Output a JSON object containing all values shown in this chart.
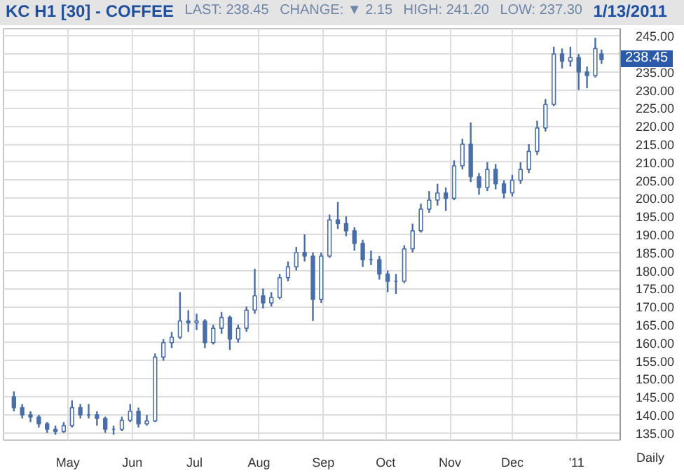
{
  "chart_data": {
    "type": "candlestick",
    "title": "KC H1 [30] - COFFEE",
    "annotations": [
      "LAST: 238.45",
      "CHANGE: ▼ 2.15",
      "HIGH: 241.20",
      "LOW: 237.30",
      "1/13/2011",
      "Daily",
      {
        "text": "238.45",
        "y": 238.45
      }
    ],
    "x": [
      "2010-04-05",
      "2010-04-09",
      "2010-04-13",
      "2010-04-17",
      "2010-04-21",
      "2010-04-25",
      "2010-04-29",
      "2010-05-03",
      "2010-05-07",
      "2010-05-11",
      "2010-05-15",
      "2010-05-19",
      "2010-05-23",
      "2010-05-27",
      "2010-05-31",
      "2010-06-04",
      "2010-06-08",
      "2010-06-12",
      "2010-06-16",
      "2010-06-20",
      "2010-06-24",
      "2010-06-28",
      "2010-07-02",
      "2010-07-06",
      "2010-07-10",
      "2010-07-14",
      "2010-07-18",
      "2010-07-22",
      "2010-07-26",
      "2010-07-30",
      "2010-08-03",
      "2010-08-07",
      "2010-08-11",
      "2010-08-15",
      "2010-08-19",
      "2010-08-23",
      "2010-08-27",
      "2010-08-31",
      "2010-09-04",
      "2010-09-08",
      "2010-09-12",
      "2010-09-16",
      "2010-09-20",
      "2010-09-24",
      "2010-09-28",
      "2010-10-02",
      "2010-10-06",
      "2010-10-10",
      "2010-10-14",
      "2010-10-18",
      "2010-10-22",
      "2010-10-26",
      "2010-10-30",
      "2010-11-03",
      "2010-11-07",
      "2010-11-11",
      "2010-11-15",
      "2010-11-19",
      "2010-11-23",
      "2010-11-27",
      "2010-12-01",
      "2010-12-05",
      "2010-12-09",
      "2010-12-13",
      "2010-12-17",
      "2010-12-21",
      "2010-12-25",
      "2010-12-29",
      "2011-01-02",
      "2011-01-06",
      "2011-01-10",
      "2011-01-13"
    ],
    "ohlc": [
      [
        145,
        146.5,
        141,
        142
      ],
      [
        142,
        143,
        139,
        140
      ],
      [
        140,
        141,
        138,
        139.4
      ],
      [
        139.4,
        140,
        136.5,
        137.5
      ],
      [
        137.5,
        138,
        135,
        136
      ],
      [
        136,
        137,
        134.5,
        135.4
      ],
      [
        135.4,
        138,
        135,
        137
      ],
      [
        137,
        144,
        136.5,
        142
      ],
      [
        142,
        143,
        139,
        140
      ],
      [
        140,
        143,
        139,
        140
      ],
      [
        140,
        141,
        137,
        139
      ],
      [
        139,
        139.5,
        135,
        136
      ],
      [
        136,
        137,
        134.5,
        136
      ],
      [
        136,
        139.5,
        135.5,
        138.5
      ],
      [
        138.5,
        143,
        138,
        141
      ],
      [
        141,
        142,
        136.5,
        137.5
      ],
      [
        137.5,
        140,
        137,
        138.3
      ],
      [
        138.3,
        157,
        138,
        156
      ],
      [
        156,
        161,
        155,
        160
      ],
      [
        160,
        163,
        158.5,
        161.5
      ],
      [
        161.5,
        174,
        161,
        166
      ],
      [
        166,
        169,
        163,
        165.5
      ],
      [
        165.5,
        168,
        163.5,
        166
      ],
      [
        166,
        166.5,
        158.5,
        160
      ],
      [
        160,
        165,
        159.5,
        164
      ],
      [
        164,
        168.5,
        162.5,
        167
      ],
      [
        167,
        167.5,
        158,
        161
      ],
      [
        161,
        165,
        160,
        164
      ],
      [
        164,
        170,
        163,
        169
      ],
      [
        169,
        180.5,
        168,
        173
      ],
      [
        173,
        175,
        169.5,
        171
      ],
      [
        171,
        174,
        170,
        172.5
      ],
      [
        172.5,
        179,
        172,
        178
      ],
      [
        178,
        182.5,
        177,
        181
      ],
      [
        181,
        186.5,
        180,
        185
      ],
      [
        185,
        190,
        182.5,
        184
      ],
      [
        184,
        185,
        166,
        172
      ],
      [
        172,
        185,
        171,
        184
      ],
      [
        184,
        195.5,
        183.5,
        194
      ],
      [
        194,
        199,
        191.5,
        193
      ],
      [
        193,
        195,
        189.5,
        191
      ],
      [
        191,
        192,
        185.5,
        187.5
      ],
      [
        187.5,
        188.5,
        181,
        183
      ],
      [
        183,
        185.5,
        181.5,
        183
      ],
      [
        183,
        184,
        177.5,
        179
      ],
      [
        179,
        180,
        174,
        177
      ],
      [
        177,
        179,
        173.5,
        177
      ],
      [
        177,
        187,
        176.5,
        186
      ],
      [
        186,
        193,
        185,
        191
      ],
      [
        191,
        198.5,
        190.5,
        197
      ],
      [
        197,
        202,
        196,
        199.5
      ],
      [
        199.5,
        204,
        198,
        201.5
      ],
      [
        201.5,
        203,
        196.5,
        200
      ],
      [
        200,
        210.5,
        199.5,
        209
      ],
      [
        209,
        216.5,
        208,
        215
      ],
      [
        215,
        221,
        204.5,
        206
      ],
      [
        206,
        207,
        201,
        203
      ],
      [
        203,
        210,
        202,
        208
      ],
      [
        208,
        209.5,
        202.5,
        204
      ],
      [
        204,
        205,
        200,
        201.5
      ],
      [
        201.5,
        206.5,
        200.5,
        205
      ],
      [
        205,
        210,
        204,
        208
      ],
      [
        208,
        215,
        207,
        213
      ],
      [
        213,
        221.5,
        212,
        219.5
      ],
      [
        219.5,
        227.5,
        218.5,
        226
      ],
      [
        226,
        242,
        225.5,
        240
      ],
      [
        240,
        241.5,
        236,
        238
      ],
      [
        238,
        242,
        236.5,
        239
      ],
      [
        239,
        240,
        230,
        235
      ],
      [
        235,
        236.5,
        230.5,
        234
      ],
      [
        234,
        244.5,
        233.5,
        241.5
      ],
      [
        240,
        241.2,
        237.3,
        238.45
      ]
    ],
    "color": "#4a6ea8",
    "xlim": [
      "2010-03-31",
      "2011-01-22"
    ],
    "xticks": [
      {
        "value": "2010-05-01",
        "label": "May"
      },
      {
        "value": "2010-06-01",
        "label": "Jun"
      },
      {
        "value": "2010-07-01",
        "label": "Jul"
      },
      {
        "value": "2010-08-01",
        "label": "Aug"
      },
      {
        "value": "2010-09-01",
        "label": "Sep"
      },
      {
        "value": "2010-10-01",
        "label": "Oct"
      },
      {
        "value": "2010-11-01",
        "label": "Nov"
      },
      {
        "value": "2010-12-01",
        "label": "Dec"
      },
      {
        "value": "2011-01-01",
        "label": "'11"
      }
    ],
    "ylim": [
      133,
      247
    ],
    "yticks": [
      {
        "value": 135,
        "label": "135.00"
      },
      {
        "value": 140,
        "label": "140.00"
      },
      {
        "value": 145,
        "label": "145.00"
      },
      {
        "value": 150,
        "label": "150.00"
      },
      {
        "value": 155,
        "label": "155.00"
      },
      {
        "value": 160,
        "label": "160.00"
      },
      {
        "value": 165,
        "label": "165.00"
      },
      {
        "value": 170,
        "label": "170.00"
      },
      {
        "value": 175,
        "label": "175.00"
      },
      {
        "value": 180,
        "label": "180.00"
      },
      {
        "value": 185,
        "label": "185.00"
      },
      {
        "value": 190,
        "label": "190.00"
      },
      {
        "value": 195,
        "label": "195.00"
      },
      {
        "value": 200,
        "label": "200.00"
      },
      {
        "value": 205,
        "label": "205.00"
      },
      {
        "value": 210,
        "label": "210.00"
      },
      {
        "value": 215,
        "label": "215.00"
      },
      {
        "value": 220,
        "label": "220.00"
      },
      {
        "value": 225,
        "label": "225.00"
      },
      {
        "value": 230,
        "label": "230.00"
      },
      {
        "value": 235,
        "label": "235.00"
      },
      {
        "value": 240,
        "label": null
      },
      {
        "value": 245,
        "label": "245.00"
      }
    ],
    "grid": true
  }
}
